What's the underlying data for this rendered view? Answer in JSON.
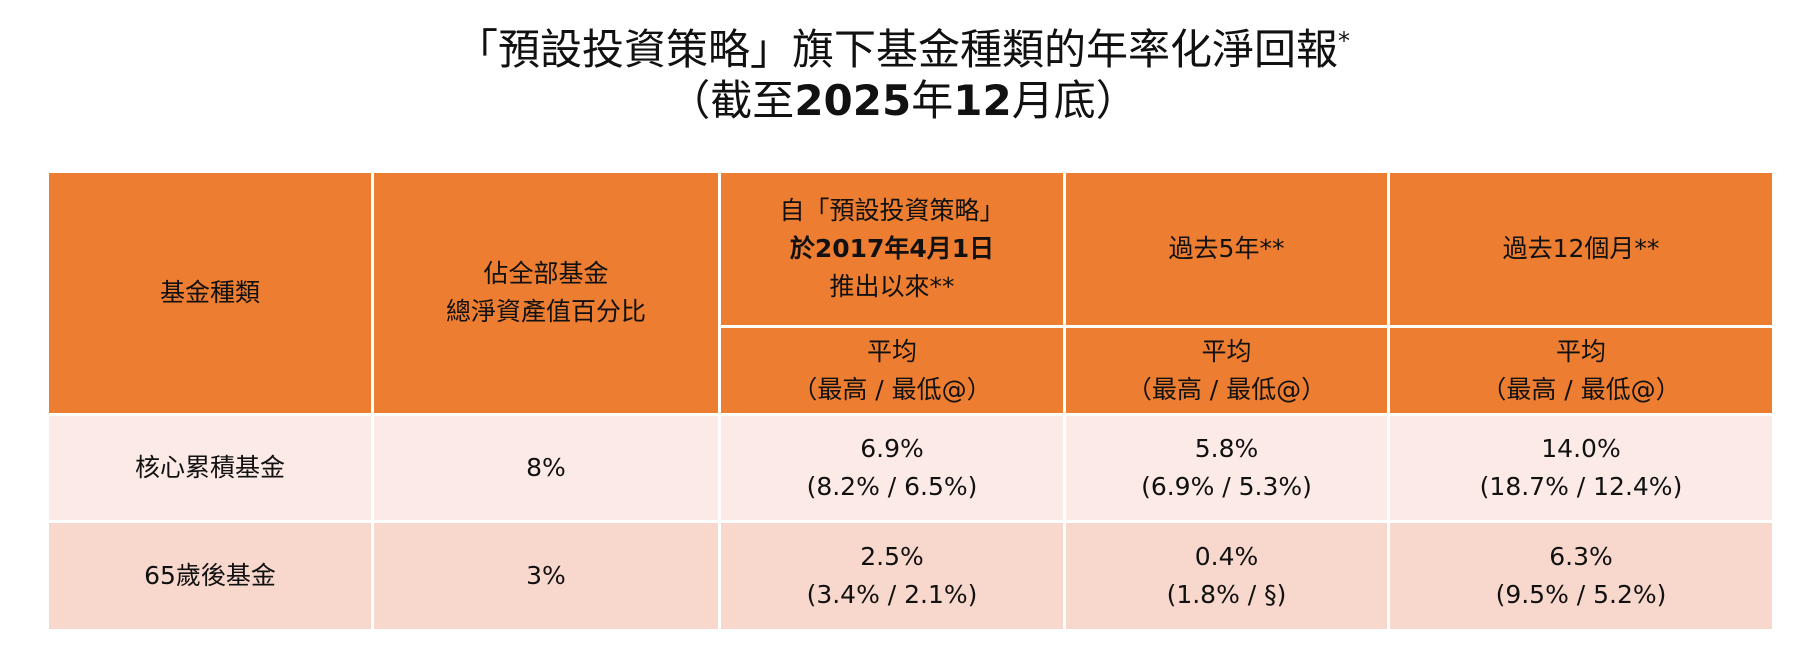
{
  "title": {
    "line1": "「預設投資策略」旗下基金種類的年率化淨回報",
    "line1_mark": "*",
    "line2_open": "（截至",
    "line2_year": "2025",
    "line2_nian": "年",
    "line2_month": "12",
    "line2_end": "月底）"
  },
  "header": {
    "fund_type": "基金種類",
    "share_line1": "佔全部基金",
    "share_line2": "總淨資產值百分比",
    "since_line1": "自「預設投資策略」",
    "since_line2": "於2017年4月1日",
    "since_line3": "推出以來**",
    "five_year": "過去5年**",
    "twelve_month": "過去12個月**",
    "avg": "平均",
    "range": "（最高 / 最低@）"
  },
  "rows": [
    {
      "fund": "核心累積基金",
      "share": "8%",
      "since_avg": "6.9%",
      "since_range": "(8.2% / 6.5%)",
      "five_avg": "5.8%",
      "five_range": "(6.9% / 5.3%)",
      "twelve_avg": "14.0%",
      "twelve_range": "(18.7% / 12.4%)"
    },
    {
      "fund": "65歲後基金",
      "share": "3%",
      "since_avg": "2.5%",
      "since_range": "(3.4% / 2.1%)",
      "five_avg": "0.4%",
      "five_range": "(1.8% / §)",
      "twelve_avg": "6.3%",
      "twelve_range": "(9.5% / 5.2%)"
    }
  ]
}
